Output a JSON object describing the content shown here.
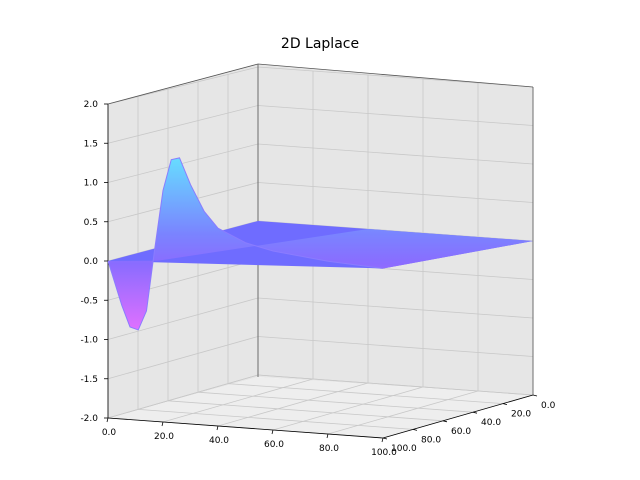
{
  "chart_data": {
    "type": "surface3d",
    "title": "2D Laplace",
    "xlabel": "",
    "ylabel": "",
    "zlabel": "",
    "x_ticks": [
      "0.0",
      "20.0",
      "40.0",
      "60.0",
      "80.0",
      "100.0"
    ],
    "y_ticks": [
      "0.0",
      "20.0",
      "40.0",
      "60.0",
      "80.0",
      "100.0"
    ],
    "z_ticks": [
      "2.0",
      "1.5",
      "1.0",
      "0.5",
      "0.0",
      "-0.5",
      "-1.0",
      "-1.5",
      "-2.0"
    ],
    "xlim": [
      0,
      100
    ],
    "ylim": [
      0,
      100
    ],
    "zlim": [
      -2.0,
      2.0
    ],
    "grid": true,
    "colormap": "cool",
    "surface_profile_along_x_at_y0": {
      "x": [
        0,
        5,
        8,
        11,
        14,
        17,
        20,
        23,
        26,
        30,
        35,
        40,
        50,
        60,
        80,
        100
      ],
      "z": [
        0.0,
        -0.55,
        -0.82,
        -0.85,
        -0.6,
        0.2,
        0.95,
        1.35,
        1.38,
        1.05,
        0.72,
        0.52,
        0.36,
        0.28,
        0.2,
        0.16
      ]
    },
    "surface_at_y100": 0.0
  }
}
